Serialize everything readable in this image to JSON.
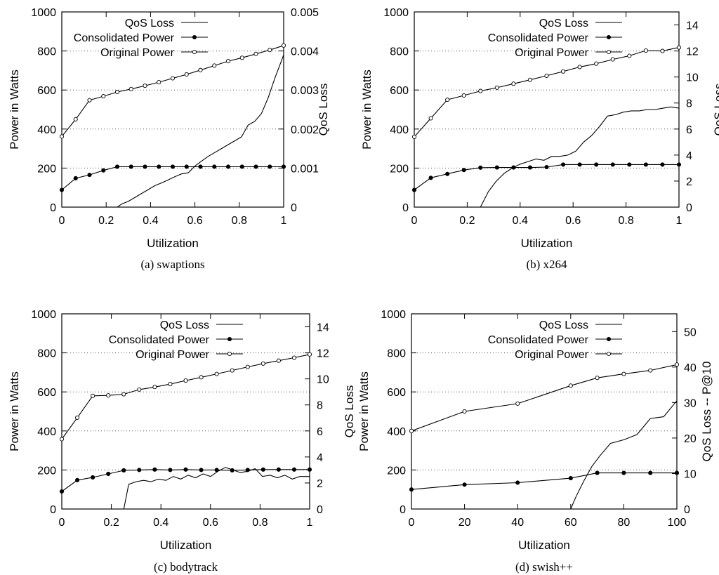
{
  "chart_data": [
    {
      "type": "line",
      "caption": "(a) swaptions",
      "xlabel": "Utilization",
      "ylabel": "Power in Watts",
      "y2label": "QoS Loss",
      "xlim": [
        0,
        1
      ],
      "ylim": [
        0,
        1000
      ],
      "y2lim": [
        0,
        0.005
      ],
      "xticks": [
        "0",
        "0.2",
        "0.4",
        "0.6",
        "0.8",
        "1"
      ],
      "yticks": [
        "0",
        "200",
        "400",
        "600",
        "800",
        "1000"
      ],
      "y2ticks": [
        "0",
        "0.001",
        "0.002",
        "0.003",
        "0.004",
        "0.005"
      ],
      "grid": "horizontal-dotted",
      "legend_position": "top-right",
      "series": [
        {
          "name": "QoS Loss",
          "axis": "y2",
          "marker": "none",
          "x": [
            0.25,
            0.27,
            0.3,
            0.33,
            0.36,
            0.39,
            0.42,
            0.45,
            0.48,
            0.51,
            0.54,
            0.57,
            0.6,
            0.63,
            0.66,
            0.69,
            0.72,
            0.75,
            0.78,
            0.81,
            0.84,
            0.87,
            0.9,
            0.93,
            0.96,
            1.0
          ],
          "y": [
            0.0,
            8e-05,
            0.00015,
            0.00025,
            0.00035,
            0.00045,
            0.00055,
            0.00062,
            0.0007,
            0.00078,
            0.00085,
            0.00088,
            0.00105,
            0.00118,
            0.0013,
            0.0014,
            0.0015,
            0.0016,
            0.0017,
            0.0018,
            0.0021,
            0.0022,
            0.0024,
            0.0028,
            0.0033,
            0.0039
          ]
        },
        {
          "name": "Consolidated Power",
          "axis": "y",
          "marker": "filled",
          "x": [
            0,
            0.0625,
            0.125,
            0.1875,
            0.25,
            0.3125,
            0.375,
            0.4375,
            0.5,
            0.5625,
            0.625,
            0.6875,
            0.75,
            0.8125,
            0.875,
            0.9375,
            1.0
          ],
          "y": [
            88,
            148,
            165,
            188,
            207,
            207,
            207,
            207,
            207,
            207,
            207,
            207,
            207,
            207,
            207,
            207,
            207
          ]
        },
        {
          "name": "Original Power",
          "axis": "y",
          "marker": "open",
          "x": [
            0,
            0.0625,
            0.125,
            0.1875,
            0.25,
            0.3125,
            0.375,
            0.4375,
            0.5,
            0.5625,
            0.625,
            0.6875,
            0.75,
            0.8125,
            0.875,
            0.9375,
            1.0
          ],
          "y": [
            362,
            450,
            548,
            568,
            590,
            605,
            622,
            640,
            660,
            680,
            702,
            725,
            748,
            765,
            785,
            805,
            828
          ]
        }
      ]
    },
    {
      "type": "line",
      "caption": "(b) x264",
      "xlabel": "Utilization",
      "ylabel": "Power in Watts",
      "y2label": "QoS Loss",
      "xlim": [
        0,
        1
      ],
      "ylim": [
        0,
        1000
      ],
      "y2lim": [
        0,
        15
      ],
      "xticks": [
        "0",
        "0.2",
        "0.4",
        "0.6",
        "0.8",
        "1"
      ],
      "yticks": [
        "0",
        "200",
        "400",
        "600",
        "800",
        "1000"
      ],
      "y2ticks": [
        "0",
        "2",
        "4",
        "6",
        "8",
        "10",
        "12",
        "14"
      ],
      "grid": "horizontal-dotted",
      "legend_position": "top-right",
      "series": [
        {
          "name": "QoS Loss",
          "axis": "y2",
          "marker": "none",
          "x": [
            0.25,
            0.28,
            0.31,
            0.34,
            0.37,
            0.4,
            0.43,
            0.46,
            0.49,
            0.52,
            0.55,
            0.58,
            0.61,
            0.64,
            0.67,
            0.7,
            0.73,
            0.76,
            0.79,
            0.82,
            0.85,
            0.88,
            0.91,
            0.94,
            0.97,
            1.0
          ],
          "y": [
            0.0,
            1.2,
            2.0,
            2.6,
            3.0,
            3.3,
            3.5,
            3.7,
            3.6,
            3.9,
            3.9,
            4.0,
            4.3,
            5.0,
            5.5,
            6.2,
            7.0,
            7.1,
            7.3,
            7.4,
            7.4,
            7.5,
            7.5,
            7.6,
            7.7,
            7.6
          ]
        },
        {
          "name": "Consolidated Power",
          "axis": "y",
          "marker": "filled",
          "x": [
            0,
            0.0625,
            0.125,
            0.1875,
            0.25,
            0.3125,
            0.375,
            0.4375,
            0.5,
            0.5625,
            0.625,
            0.6875,
            0.75,
            0.8125,
            0.875,
            0.9375,
            1.0
          ],
          "y": [
            88,
            150,
            170,
            190,
            202,
            203,
            203,
            203,
            205,
            218,
            218,
            218,
            218,
            218,
            218,
            218,
            218
          ]
        },
        {
          "name": "Original Power",
          "axis": "y",
          "marker": "open",
          "x": [
            0,
            0.0625,
            0.125,
            0.1875,
            0.25,
            0.3125,
            0.375,
            0.4375,
            0.5,
            0.5625,
            0.625,
            0.6875,
            0.75,
            0.8125,
            0.875,
            0.9375,
            1.0
          ],
          "y": [
            360,
            455,
            550,
            572,
            595,
            612,
            632,
            652,
            673,
            695,
            718,
            735,
            757,
            775,
            802,
            800,
            818
          ]
        }
      ]
    },
    {
      "type": "line",
      "caption": "(c) bodytrack",
      "xlabel": "Utilization",
      "ylabel": "Power in Watts",
      "y2label": "QoS Loss",
      "xlim": [
        0,
        1
      ],
      "ylim": [
        0,
        1000
      ],
      "y2lim": [
        0,
        15
      ],
      "xticks": [
        "0",
        "0.2",
        "0.4",
        "0.6",
        "0.8",
        "1"
      ],
      "yticks": [
        "0",
        "200",
        "400",
        "600",
        "800",
        "1000"
      ],
      "y2ticks": [
        "0",
        "2",
        "4",
        "6",
        "8",
        "10",
        "12",
        "14"
      ],
      "grid": "horizontal-dotted",
      "legend_position": "top-right",
      "series": [
        {
          "name": "QoS Loss",
          "axis": "y2",
          "marker": "none",
          "x": [
            0.25,
            0.27,
            0.3,
            0.33,
            0.36,
            0.39,
            0.42,
            0.45,
            0.48,
            0.51,
            0.54,
            0.57,
            0.6,
            0.63,
            0.66,
            0.69,
            0.72,
            0.75,
            0.78,
            0.81,
            0.84,
            0.87,
            0.9,
            0.93,
            0.96,
            1.0
          ],
          "y": [
            0.0,
            1.9,
            2.1,
            2.2,
            2.1,
            2.3,
            2.2,
            2.5,
            2.3,
            2.6,
            2.4,
            2.7,
            2.5,
            2.9,
            3.2,
            3.0,
            2.8,
            2.9,
            3.1,
            2.5,
            2.6,
            2.4,
            2.6,
            2.3,
            2.5,
            2.5
          ]
        },
        {
          "name": "Consolidated Power",
          "axis": "y",
          "marker": "filled",
          "x": [
            0,
            0.0625,
            0.125,
            0.1875,
            0.25,
            0.3125,
            0.375,
            0.4375,
            0.5,
            0.5625,
            0.625,
            0.6875,
            0.75,
            0.8125,
            0.875,
            0.9375,
            1.0
          ],
          "y": [
            90,
            148,
            162,
            180,
            198,
            200,
            202,
            200,
            202,
            200,
            200,
            198,
            200,
            202,
            202,
            202,
            202
          ]
        },
        {
          "name": "Original Power",
          "axis": "y",
          "marker": "open",
          "x": [
            0,
            0.0625,
            0.125,
            0.1875,
            0.25,
            0.3125,
            0.375,
            0.4375,
            0.5,
            0.5625,
            0.625,
            0.6875,
            0.75,
            0.8125,
            0.875,
            0.9375,
            1.0
          ],
          "y": [
            358,
            468,
            580,
            582,
            588,
            612,
            625,
            640,
            658,
            675,
            692,
            710,
            728,
            745,
            760,
            775,
            792
          ]
        }
      ]
    },
    {
      "type": "line",
      "caption": "(d) swish++",
      "xlabel": "Utilization",
      "ylabel": "Power in Watts",
      "y2label": "QoS Loss -- P@10",
      "xlim": [
        0,
        100
      ],
      "ylim": [
        0,
        1000
      ],
      "y2lim": [
        0,
        55
      ],
      "xticks": [
        "0",
        "20",
        "40",
        "60",
        "80",
        "100"
      ],
      "yticks": [
        "0",
        "200",
        "400",
        "600",
        "800",
        "1000"
      ],
      "y2ticks": [
        "0",
        "10",
        "20",
        "30",
        "40",
        "50"
      ],
      "grid": "horizontal-dotted",
      "legend_position": "top-right",
      "series": [
        {
          "name": "QoS Loss",
          "axis": "y2",
          "marker": "none",
          "x": [
            60,
            62,
            65,
            68,
            71,
            75,
            80,
            85,
            90,
            95,
            100
          ],
          "y": [
            0.0,
            3.5,
            8.0,
            12.0,
            15.0,
            18.5,
            19.5,
            21.0,
            25.5,
            26.0,
            30.5
          ]
        },
        {
          "name": "Consolidated Power",
          "axis": "y",
          "marker": "filled",
          "x": [
            0,
            20,
            40,
            60,
            70,
            80,
            90,
            100
          ],
          "y": [
            100,
            125,
            135,
            158,
            185,
            185,
            185,
            185
          ]
        },
        {
          "name": "Original Power",
          "axis": "y",
          "marker": "open",
          "x": [
            0,
            20,
            40,
            60,
            70,
            80,
            90,
            100
          ],
          "y": [
            400,
            500,
            540,
            632,
            672,
            692,
            710,
            740
          ]
        }
      ]
    }
  ]
}
